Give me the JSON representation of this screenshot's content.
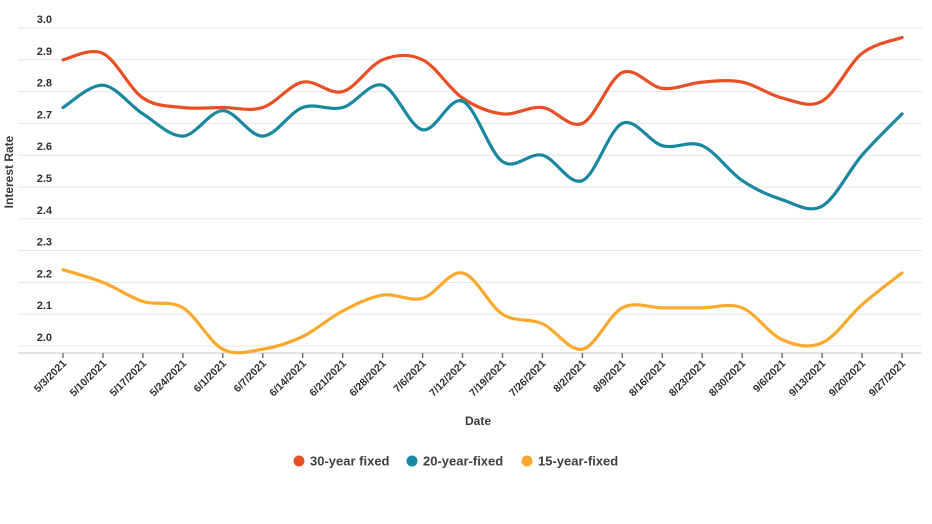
{
  "chart_data": {
    "type": "line",
    "title": "",
    "xlabel": "Date",
    "ylabel": "Interest Rate",
    "categories": [
      "5/3/2021",
      "5/10/2021",
      "5/17/2021",
      "5/24/2021",
      "6/1/2021",
      "6/7/2021",
      "6/14/2021",
      "6/21/2021",
      "6/28/2021",
      "7/6/2021",
      "7/12/2021",
      "7/19/2021",
      "7/26/2021",
      "8/2/2021",
      "8/9/2021",
      "8/16/2021",
      "8/23/2021",
      "8/30/2021",
      "9/6/2021",
      "9/13/2021",
      "9/20/2021",
      "9/27/2021"
    ],
    "series": [
      {
        "name": "30-year fixed",
        "color": "#e94f25",
        "values": [
          2.9,
          2.92,
          2.78,
          2.75,
          2.75,
          2.75,
          2.83,
          2.8,
          2.9,
          2.9,
          2.78,
          2.73,
          2.75,
          2.7,
          2.86,
          2.81,
          2.83,
          2.83,
          2.78,
          2.77,
          2.92,
          2.97
        ]
      },
      {
        "name": "20-year-fixed",
        "color": "#1a87a0",
        "values": [
          2.75,
          2.82,
          2.73,
          2.66,
          2.74,
          2.66,
          2.75,
          2.75,
          2.82,
          2.68,
          2.77,
          2.58,
          2.6,
          2.52,
          2.7,
          2.63,
          2.63,
          2.52,
          2.46,
          2.44,
          2.6,
          2.73
        ]
      },
      {
        "name": "15-year-fixed",
        "color": "#fba92c",
        "values": [
          2.24,
          2.2,
          2.14,
          2.12,
          1.99,
          1.99,
          2.03,
          2.11,
          2.16,
          2.15,
          2.23,
          2.1,
          2.07,
          1.99,
          2.12,
          2.12,
          2.12,
          2.12,
          2.02,
          2.01,
          2.13,
          2.23
        ]
      }
    ],
    "ylim": [
      2.0,
      3.0
    ],
    "y_tick_step": 0.1,
    "grid": true,
    "curve": "smooth",
    "legend_position": "bottom",
    "style": {
      "grid_color": "#e5e5e5",
      "axis_line_color": "#d2d2d2",
      "tick_mark_color": "#6b6b6b",
      "tick_label_color": "#2f2f2f",
      "axis_title_color": "#3b3b3b",
      "legend_text_color": "#3f3f3f",
      "background": "#ffffff"
    }
  }
}
